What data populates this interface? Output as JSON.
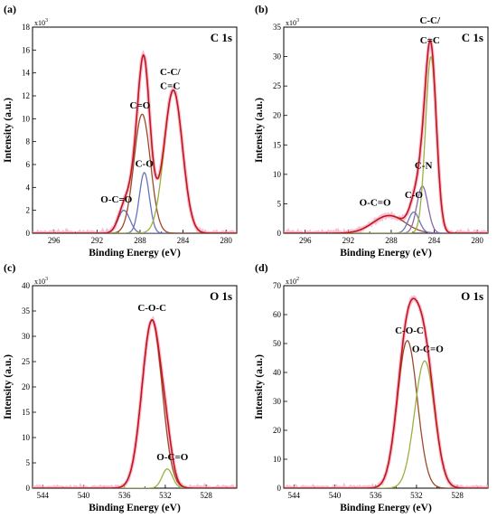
{
  "colors": {
    "raw": "#f4a8c8",
    "envelope": "#c01818",
    "comp_brown": "#9a4a2a",
    "comp_blue": "#6a72b8",
    "comp_olive": "#9ab040",
    "comp_purple": "#8a6aa8"
  },
  "chart_data": [
    {
      "id": "a",
      "type": "line",
      "panel_label": "(a)",
      "title": "C 1s",
      "xlabel": "Binding Energy (eV)",
      "ylabel": "Intensity (a.u.)",
      "xlim": [
        298,
        279
      ],
      "ylim": [
        0,
        18
      ],
      "xticks": [
        "296",
        "292",
        "288",
        "284",
        "280"
      ],
      "xtick_values": [
        296,
        292,
        288,
        284,
        280
      ],
      "yticks": [
        "0",
        "2",
        "4",
        "6",
        "8",
        "10",
        "12",
        "14",
        "16",
        "18"
      ],
      "ytick_values": [
        0,
        2,
        4,
        6,
        8,
        10,
        12,
        14,
        16,
        18
      ],
      "multiplier_base": "x10",
      "multiplier_exp": "3",
      "components": [
        {
          "label": "O-C=O",
          "center": 289.5,
          "height": 2.0,
          "fwhm": 1.3,
          "color": "comp_blue"
        },
        {
          "label": "C-O",
          "center": 287.6,
          "height": 5.3,
          "fwhm": 1.1,
          "color": "comp_blue"
        },
        {
          "label": "C=O",
          "center": 287.8,
          "height": 10.4,
          "fwhm": 1.8,
          "color": "comp_brown"
        },
        {
          "label": "C-C/ C=C",
          "center": 284.9,
          "height": 12.5,
          "fwhm": 2.0,
          "color": "comp_olive"
        }
      ],
      "annotations": [
        {
          "text": "O-C=O",
          "x": 290.2,
          "y": 2.7
        },
        {
          "text": "C-O",
          "x": 287.6,
          "y": 5.8
        },
        {
          "text": "C=O",
          "x": 288.0,
          "y": 10.9
        },
        {
          "text": "C-C/",
          "x": 285.2,
          "y": 13.8
        },
        {
          "text": "C=C",
          "x": 285.2,
          "y": 12.6
        }
      ]
    },
    {
      "id": "b",
      "type": "line",
      "panel_label": "(b)",
      "title": "C 1s",
      "xlabel": "Binding Energy (eV)",
      "ylabel": "Intensity (a.u.)",
      "xlim": [
        298,
        279
      ],
      "ylim": [
        0,
        35
      ],
      "xticks": [
        "296",
        "292",
        "288",
        "284",
        "280"
      ],
      "xtick_values": [
        296,
        292,
        288,
        284,
        280
      ],
      "yticks": [
        "0",
        "5",
        "10",
        "15",
        "20",
        "25",
        "30",
        "35"
      ],
      "ytick_values": [
        0,
        5,
        10,
        15,
        20,
        25,
        30,
        35
      ],
      "multiplier_base": "x10",
      "multiplier_exp": "3",
      "components": [
        {
          "label": "O-C=O",
          "center": 288.2,
          "height": 3.0,
          "fwhm": 3.5,
          "color": "comp_brown"
        },
        {
          "label": "C-O",
          "center": 285.9,
          "height": 3.6,
          "fwhm": 1.2,
          "color": "comp_blue"
        },
        {
          "label": "C-N",
          "center": 285.1,
          "height": 8.0,
          "fwhm": 1.2,
          "color": "comp_purple"
        },
        {
          "label": "C-C/ C=C",
          "center": 284.3,
          "height": 30.0,
          "fwhm": 1.2,
          "color": "comp_olive"
        }
      ],
      "annotations": [
        {
          "text": "O-C=O",
          "x": 289.5,
          "y": 4.7
        },
        {
          "text": "C-O",
          "x": 285.9,
          "y": 6.0
        },
        {
          "text": "C-N",
          "x": 285.0,
          "y": 11.0
        },
        {
          "text": "C-C/",
          "x": 284.4,
          "y": 35.6
        },
        {
          "text": "C=C",
          "x": 284.4,
          "y": 32.2
        }
      ]
    },
    {
      "id": "c",
      "type": "line",
      "panel_label": "(c)",
      "title": "O 1s",
      "xlabel": "Binding Energy (eV)",
      "ylabel": "Intensity (a.u.)",
      "xlim": [
        545,
        525
      ],
      "ylim": [
        0,
        40
      ],
      "xticks": [
        "544",
        "540",
        "536",
        "532",
        "528"
      ],
      "xtick_values": [
        544,
        540,
        536,
        532,
        528
      ],
      "yticks": [
        "0",
        "5",
        "10",
        "15",
        "20",
        "25",
        "30",
        "35",
        "40"
      ],
      "ytick_values": [
        0,
        5,
        10,
        15,
        20,
        25,
        30,
        35,
        40
      ],
      "multiplier_base": "x10",
      "multiplier_exp": "3",
      "components": [
        {
          "label": "C-O-C",
          "center": 533.3,
          "height": 33.2,
          "fwhm": 2.3,
          "color": "comp_brown"
        },
        {
          "label": "O-C=O",
          "center": 531.8,
          "height": 3.8,
          "fwhm": 1.2,
          "color": "comp_olive"
        }
      ],
      "annotations": [
        {
          "text": "C-O-C",
          "x": 533.3,
          "y": 35.0
        },
        {
          "text": "O-C=O",
          "x": 531.3,
          "y": 5.5
        }
      ]
    },
    {
      "id": "d",
      "type": "line",
      "panel_label": "(d)",
      "title": "O 1s",
      "xlabel": "Binding Energy (eV)",
      "ylabel": "Intensity (a.u.)",
      "xlim": [
        545,
        525
      ],
      "ylim": [
        0,
        70
      ],
      "xticks": [
        "544",
        "540",
        "536",
        "532",
        "528"
      ],
      "xtick_values": [
        544,
        540,
        536,
        532,
        528
      ],
      "yticks": [
        "0",
        "10",
        "20",
        "30",
        "40",
        "50",
        "60",
        "70"
      ],
      "ytick_values": [
        0,
        10,
        20,
        30,
        40,
        50,
        60,
        70
      ],
      "multiplier_base": "x10",
      "multiplier_exp": "2",
      "components": [
        {
          "label": "C-O-C",
          "center": 532.9,
          "height": 51.0,
          "fwhm": 2.3,
          "color": "comp_brown"
        },
        {
          "label": "O-C=O",
          "center": 531.2,
          "height": 44.0,
          "fwhm": 2.3,
          "color": "comp_olive"
        }
      ],
      "annotations": [
        {
          "text": "C-O-C",
          "x": 532.7,
          "y": 53.5
        },
        {
          "text": "O-C=O",
          "x": 530.9,
          "y": 47.0
        }
      ]
    }
  ]
}
